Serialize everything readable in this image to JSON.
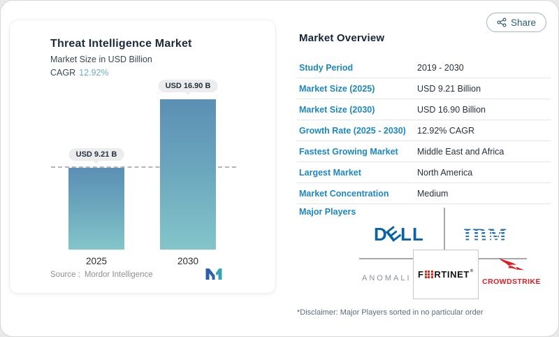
{
  "header": {
    "share_label": "Share"
  },
  "chart_card": {
    "title": "Threat Intelligence Market",
    "subtitle": "Market Size in USD Billion",
    "cagr_label": "CAGR",
    "cagr_value": "12.92%",
    "source_label": "Source :",
    "source_name": "Mordor Intelligence"
  },
  "chart_data": {
    "type": "bar",
    "title": "Threat Intelligence Market",
    "ylabel": "Market Size in USD Billion",
    "categories": [
      "2025",
      "2030"
    ],
    "values": [
      9.21,
      16.9
    ],
    "bar_labels": [
      "USD 9.21 B",
      "USD 16.90 B"
    ],
    "cagr_pct": 12.92,
    "reference_line": 9.21,
    "ylim": [
      0,
      18
    ],
    "grid": false,
    "legend": "none"
  },
  "overview": {
    "title": "Market Overview",
    "rows": [
      {
        "label": "Study Period",
        "value": "2019 - 2030"
      },
      {
        "label": "Market Size (2025)",
        "value": "USD 9.21 Billion"
      },
      {
        "label": "Market Size (2030)",
        "value": "USD 16.90 Billion"
      },
      {
        "label": "Growth Rate (2025 - 2030)",
        "value": "12.92% CAGR"
      },
      {
        "label": "Fastest Growing Market",
        "value": "Middle East and Africa"
      },
      {
        "label": "Largest Market",
        "value": "North America"
      },
      {
        "label": "Market Concentration",
        "value": "Medium"
      }
    ],
    "major_players_label": "Major Players",
    "disclaimer": "*Disclaimer: Major Players sorted in no particular order"
  },
  "players": {
    "dell": {
      "name": "Dell",
      "d": "D",
      "e": "E",
      "l1": "L",
      "l2": "L"
    },
    "ibm": {
      "text": "IBM"
    },
    "anomali": {
      "text": "ANOMALI"
    },
    "fortinet": {
      "first": "F",
      "rest": "RTINET",
      "reg": "®"
    },
    "crowdstrike": {
      "text": "CROWDSTRIKE"
    }
  },
  "colors": {
    "accent_blue": "#1d87c4",
    "cagr_blue": "#74a9cc",
    "bar_gradient_top": "#5b8fb4",
    "bar_gradient_bottom": "#84c5ca",
    "dell_blue": "#0a62a9",
    "ibm_blue": "#2570b8",
    "anomali_gray": "#8a9097",
    "fortinet_red": "#da291c",
    "crowdstrike_red": "#dd1d21",
    "share_teal": "#2d5e70"
  }
}
